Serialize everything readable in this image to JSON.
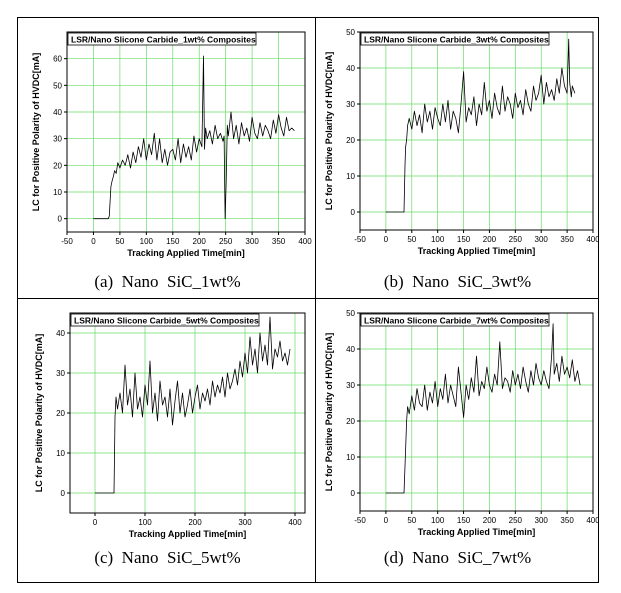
{
  "chart_data": [
    {
      "type": "line",
      "title": "LSR/Nano Slicone Carbide_1wt% Composites",
      "xlabel": "Tracking Applied Time[min]",
      "ylabel": "LC for Positive Polarity of HVDC[mA]",
      "xlim": [
        -50,
        400
      ],
      "ylim": [
        -5,
        70
      ],
      "xticks": [
        -50,
        0,
        50,
        100,
        150,
        200,
        250,
        300,
        350,
        400
      ],
      "yticks": [
        0,
        10,
        20,
        30,
        40,
        50,
        60
      ],
      "grid": true,
      "caption": "(a)  Nano  SiC_1wt%",
      "x": [
        0,
        5,
        10,
        15,
        20,
        25,
        28,
        30,
        33,
        35,
        38,
        40,
        43,
        46,
        50,
        55,
        60,
        65,
        70,
        75,
        80,
        85,
        90,
        95,
        100,
        105,
        110,
        115,
        120,
        125,
        130,
        135,
        140,
        145,
        150,
        155,
        160,
        165,
        170,
        175,
        180,
        185,
        190,
        195,
        200,
        205,
        208,
        210,
        212,
        215,
        220,
        225,
        230,
        235,
        240,
        245,
        247,
        249,
        251,
        253,
        255,
        260,
        265,
        270,
        275,
        280,
        285,
        290,
        295,
        300,
        305,
        310,
        315,
        320,
        325,
        330,
        335,
        340,
        345,
        350,
        355,
        360,
        365,
        370,
        375,
        380
      ],
      "values": [
        0,
        0,
        0,
        0,
        0,
        0,
        0,
        1,
        12,
        14,
        16,
        18,
        17,
        21,
        19,
        22,
        20,
        24,
        19,
        25,
        21,
        27,
        23,
        30,
        22,
        28,
        24,
        32,
        22,
        30,
        21,
        26,
        20,
        25,
        26,
        22,
        30,
        21,
        28,
        23,
        27,
        22,
        31,
        25,
        30,
        27,
        61,
        26,
        34,
        30,
        33,
        28,
        35,
        30,
        32,
        29,
        31,
        0,
        14,
        35,
        31,
        40,
        30,
        35,
        28,
        36,
        31,
        34,
        29,
        38,
        32,
        30,
        36,
        31,
        35,
        33,
        30,
        37,
        32,
        39,
        34,
        31,
        38,
        33,
        34,
        33
      ]
    },
    {
      "type": "line",
      "title": "LSR/Nano Slicone Carbide_3wt% Composites",
      "xlabel": "Tracking Applied Time[min]",
      "ylabel": "LC for Positive Polarity of HVDC[mA]",
      "xlim": [
        -50,
        400
      ],
      "ylim": [
        -5,
        50
      ],
      "xticks": [
        -50,
        0,
        50,
        100,
        150,
        200,
        250,
        300,
        350,
        400
      ],
      "yticks": [
        0,
        10,
        20,
        30,
        40,
        50
      ],
      "grid": true,
      "caption": "(b)  Nano  SiC_3wt%",
      "x": [
        0,
        5,
        10,
        15,
        20,
        25,
        30,
        35,
        37,
        38,
        40,
        42,
        45,
        50,
        55,
        60,
        65,
        70,
        75,
        80,
        85,
        90,
        95,
        100,
        105,
        110,
        115,
        120,
        125,
        130,
        135,
        140,
        145,
        150,
        155,
        160,
        165,
        170,
        175,
        180,
        185,
        190,
        195,
        200,
        205,
        210,
        215,
        220,
        225,
        230,
        235,
        240,
        245,
        250,
        255,
        260,
        265,
        270,
        275,
        280,
        285,
        290,
        295,
        300,
        305,
        310,
        315,
        320,
        325,
        330,
        335,
        340,
        345,
        350,
        353,
        355,
        358,
        360,
        365
      ],
      "values": [
        0,
        0,
        0,
        0,
        0,
        0,
        0,
        0,
        13,
        18,
        20,
        24,
        26,
        23,
        28,
        24,
        27,
        22,
        30,
        25,
        28,
        23,
        29,
        26,
        24,
        30,
        25,
        31,
        23,
        28,
        26,
        22,
        30,
        39,
        25,
        29,
        27,
        32,
        24,
        30,
        27,
        36,
        28,
        31,
        26,
        33,
        29,
        27,
        35,
        28,
        32,
        30,
        26,
        33,
        29,
        31,
        27,
        34,
        30,
        28,
        35,
        31,
        33,
        38,
        30,
        36,
        32,
        34,
        31,
        37,
        33,
        40,
        35,
        33,
        48,
        36,
        32,
        35,
        33
      ]
    },
    {
      "type": "line",
      "title": "LSR/Nano Slicone Carbide_5wt% Composites",
      "xlabel": "Tracking Applied Time[min]",
      "ylabel": "LC for Positive Polarity of HVDC[mA]",
      "xlim": [
        -50,
        420
      ],
      "ylim": [
        -5,
        45
      ],
      "xticks": [
        0,
        100,
        200,
        300,
        400
      ],
      "yticks": [
        0,
        10,
        20,
        30,
        40
      ],
      "grid": true,
      "caption": "(c)  Nano  SiC_5wt%",
      "x": [
        0,
        10,
        20,
        30,
        35,
        38,
        40,
        42,
        45,
        50,
        55,
        60,
        65,
        70,
        75,
        80,
        85,
        90,
        95,
        100,
        105,
        110,
        115,
        120,
        125,
        130,
        135,
        140,
        145,
        150,
        155,
        160,
        165,
        170,
        175,
        180,
        185,
        190,
        195,
        200,
        205,
        210,
        215,
        220,
        225,
        230,
        235,
        240,
        245,
        250,
        255,
        260,
        265,
        270,
        275,
        280,
        285,
        290,
        295,
        300,
        305,
        310,
        315,
        320,
        325,
        330,
        335,
        340,
        345,
        350,
        355,
        360,
        365,
        370,
        375,
        380,
        385,
        390
      ],
      "values": [
        0,
        0,
        0,
        0,
        0,
        0,
        19,
        24,
        21,
        25,
        20,
        32,
        22,
        26,
        19,
        30,
        21,
        24,
        19,
        27,
        22,
        33,
        20,
        25,
        18,
        28,
        22,
        24,
        19,
        26,
        17,
        23,
        28,
        20,
        25,
        19,
        22,
        26,
        20,
        24,
        27,
        21,
        25,
        23,
        26,
        22,
        28,
        24,
        27,
        25,
        29,
        24,
        30,
        26,
        28,
        31,
        27,
        33,
        29,
        35,
        30,
        39,
        32,
        36,
        30,
        40,
        33,
        37,
        32,
        44,
        31,
        36,
        34,
        38,
        33,
        35,
        32,
        36
      ]
    },
    {
      "type": "line",
      "title": "LSR/Nano Slicone Carbide_7wt% Composites",
      "xlabel": "Tracking Applied Time[min]",
      "ylabel": "LC for Positive Polarity of HVDC[mA]",
      "xlim": [
        -50,
        400
      ],
      "ylim": [
        -5,
        50
      ],
      "xticks": [
        -50,
        0,
        50,
        100,
        150,
        200,
        250,
        300,
        350,
        400
      ],
      "yticks": [
        0,
        10,
        20,
        30,
        40,
        50
      ],
      "grid": true,
      "caption": "(d)  Nano  SiC_7wt%",
      "x": [
        0,
        5,
        10,
        15,
        20,
        25,
        30,
        35,
        38,
        40,
        42,
        45,
        50,
        55,
        60,
        65,
        70,
        75,
        80,
        85,
        90,
        95,
        100,
        105,
        110,
        115,
        120,
        125,
        130,
        135,
        140,
        145,
        150,
        155,
        160,
        165,
        170,
        175,
        180,
        185,
        190,
        195,
        200,
        205,
        210,
        215,
        220,
        225,
        230,
        235,
        240,
        245,
        250,
        255,
        260,
        265,
        270,
        275,
        280,
        285,
        290,
        295,
        300,
        305,
        310,
        315,
        320,
        323,
        325,
        330,
        335,
        340,
        345,
        350,
        355,
        360,
        365,
        370,
        375
      ],
      "values": [
        0,
        0,
        0,
        0,
        0,
        0,
        0,
        0,
        12,
        20,
        24,
        22,
        27,
        23,
        29,
        25,
        24,
        30,
        23,
        28,
        25,
        31,
        24,
        29,
        26,
        33,
        25,
        30,
        27,
        24,
        35,
        28,
        21,
        30,
        26,
        32,
        28,
        38,
        27,
        31,
        29,
        35,
        30,
        28,
        33,
        30,
        42,
        29,
        32,
        31,
        28,
        34,
        30,
        33,
        29,
        35,
        31,
        28,
        34,
        30,
        36,
        32,
        30,
        34,
        31,
        29,
        38,
        47,
        33,
        36,
        31,
        38,
        33,
        35,
        32,
        37,
        31,
        34,
        30
      ]
    }
  ]
}
